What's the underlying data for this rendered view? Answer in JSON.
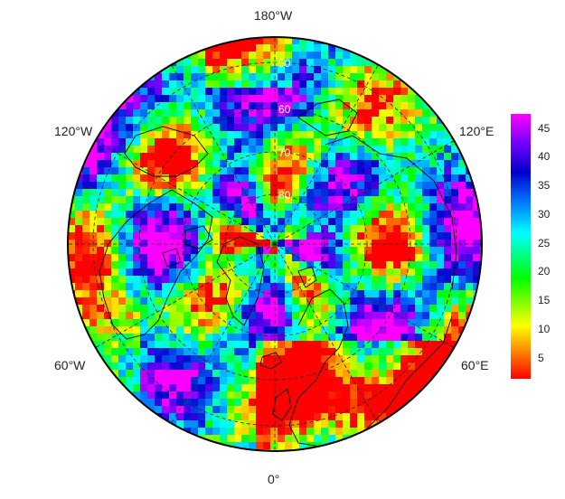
{
  "map": {
    "projection": "north-polar-stereographic",
    "longitude_labels": {
      "top": "180°W",
      "upper_left": "120°W",
      "upper_right": "120°E",
      "lower_left": "60°W",
      "lower_right": "60°E",
      "bottom": "0°"
    },
    "latitude_labels": [
      "50",
      "60",
      "70",
      "80"
    ]
  },
  "colorbar": {
    "ticks": [
      "45",
      "40",
      "35",
      "30",
      "25",
      "20",
      "15",
      "10",
      "5"
    ],
    "colors": [
      "#ff0000",
      "#ff8000",
      "#ffff00",
      "#00ff00",
      "#00ffff",
      "#0080ff",
      "#0000cc",
      "#8000ff",
      "#ff00ff"
    ],
    "range": [
      1,
      48
    ]
  }
}
